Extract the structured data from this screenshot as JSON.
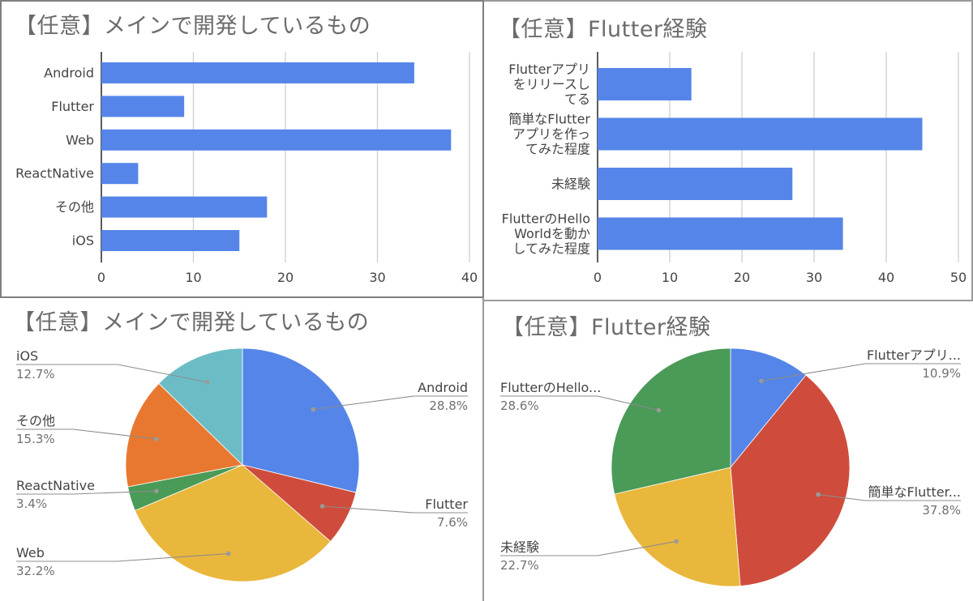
{
  "colors": {
    "bar": "#5585e8",
    "grid": "#cfcfcf",
    "axis": "#333333",
    "label": "#444444",
    "pct": "#707070",
    "title": "#6b6b6b",
    "leader": "#8c8c8c",
    "pie": [
      "#5585e8",
      "#cf4c3c",
      "#e9b73c",
      "#4a9a58",
      "#e8782f",
      "#6cbcc6"
    ]
  },
  "chart_data": [
    {
      "type": "bar",
      "orientation": "horizontal",
      "title": "【任意】メインで開発しているもの",
      "categories": [
        "Android",
        "Flutter",
        "Web",
        "ReactNative",
        "その他",
        "iOS"
      ],
      "values": [
        34,
        9,
        38,
        4,
        18,
        15
      ],
      "xlim": [
        0,
        40
      ],
      "ticks": [
        "0",
        "10",
        "20",
        "30",
        "40"
      ],
      "grid": true
    },
    {
      "type": "bar",
      "orientation": "horizontal",
      "title": "【任意】Flutter経験",
      "categories": [
        [
          "Flutterアプリ",
          "をリリースし",
          "てる"
        ],
        [
          "簡単なFlutter",
          "アプリを作っ",
          "てみた程度"
        ],
        [
          "未経験"
        ],
        [
          "FlutterのHello",
          "Worldを動か",
          "してみた程度"
        ]
      ],
      "values": [
        13,
        45,
        27,
        34
      ],
      "xlim": [
        0,
        50
      ],
      "ticks": [
        "0",
        "10",
        "20",
        "30",
        "40",
        "50"
      ],
      "grid": true
    },
    {
      "type": "pie",
      "title": "【任意】メインで開発しているもの",
      "slices": [
        {
          "label": "Android",
          "pct": "28.8%",
          "value": 28.8
        },
        {
          "label": "Flutter",
          "pct": "7.6%",
          "value": 7.6
        },
        {
          "label": "Web",
          "pct": "32.2%",
          "value": 32.2
        },
        {
          "label": "ReactNative",
          "pct": "3.4%",
          "value": 3.4
        },
        {
          "label": "その他",
          "pct": "15.3%",
          "value": 15.3
        },
        {
          "label": "iOS",
          "pct": "12.7%",
          "value": 12.7
        }
      ]
    },
    {
      "type": "pie",
      "title": "【任意】Flutter経験",
      "slices": [
        {
          "label": "Flutterアプリ...",
          "pct": "10.9%",
          "value": 10.9
        },
        {
          "label": "簡単なFlutter...",
          "pct": "37.8%",
          "value": 37.8
        },
        {
          "label": "未経験",
          "pct": "22.7%",
          "value": 22.7
        },
        {
          "label": "FlutterのHello...",
          "pct": "28.6%",
          "value": 28.6
        }
      ]
    }
  ]
}
